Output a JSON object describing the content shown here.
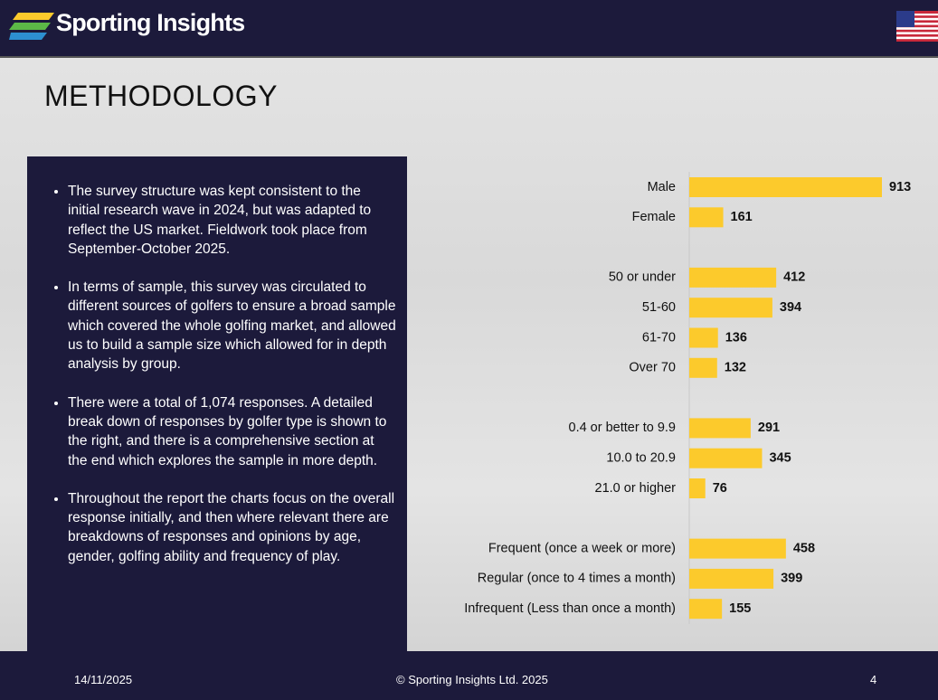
{
  "header": {
    "brand": "Sporting Insights"
  },
  "title": "METHODOLOGY",
  "bullets": [
    "The survey structure was kept consistent to the initial research wave in 2024, but was adapted to reflect the US market. Fieldwork took place from September-October 2025.",
    "In terms of sample, this survey was circulated to different sources of golfers to ensure a broad sample which covered the whole golfing market, and allowed us to build a sample size which allowed for in depth analysis by group.",
    "There were a total of 1,074 responses. A detailed break down of responses by golfer type is shown to the right, and there is a comprehensive section at the end which explores the sample in more depth.",
    "Throughout the report the charts focus on the overall response initially, and then where relevant there are breakdowns of responses and opinions by age, gender, golfing ability and frequency of play."
  ],
  "chart_data": {
    "type": "bar",
    "orientation": "horizontal",
    "categories": [
      "Male",
      "Female",
      null,
      "50 or under",
      "51-60",
      "61-70",
      "Over 70",
      null,
      "0.4 or better to 9.9",
      "10.0 to 20.9",
      "21.0 or higher",
      null,
      "Frequent (once a week or more)",
      "Regular (once to 4 times a month)",
      "Infrequent (Less than once a month)"
    ],
    "values": [
      913,
      161,
      null,
      412,
      394,
      136,
      132,
      null,
      291,
      345,
      76,
      null,
      458,
      399,
      155
    ],
    "color": "#fcca2c"
  },
  "footer": {
    "date": "14/11/2025",
    "copyright": "© Sporting Insights Ltd. 2025",
    "page": "4"
  }
}
